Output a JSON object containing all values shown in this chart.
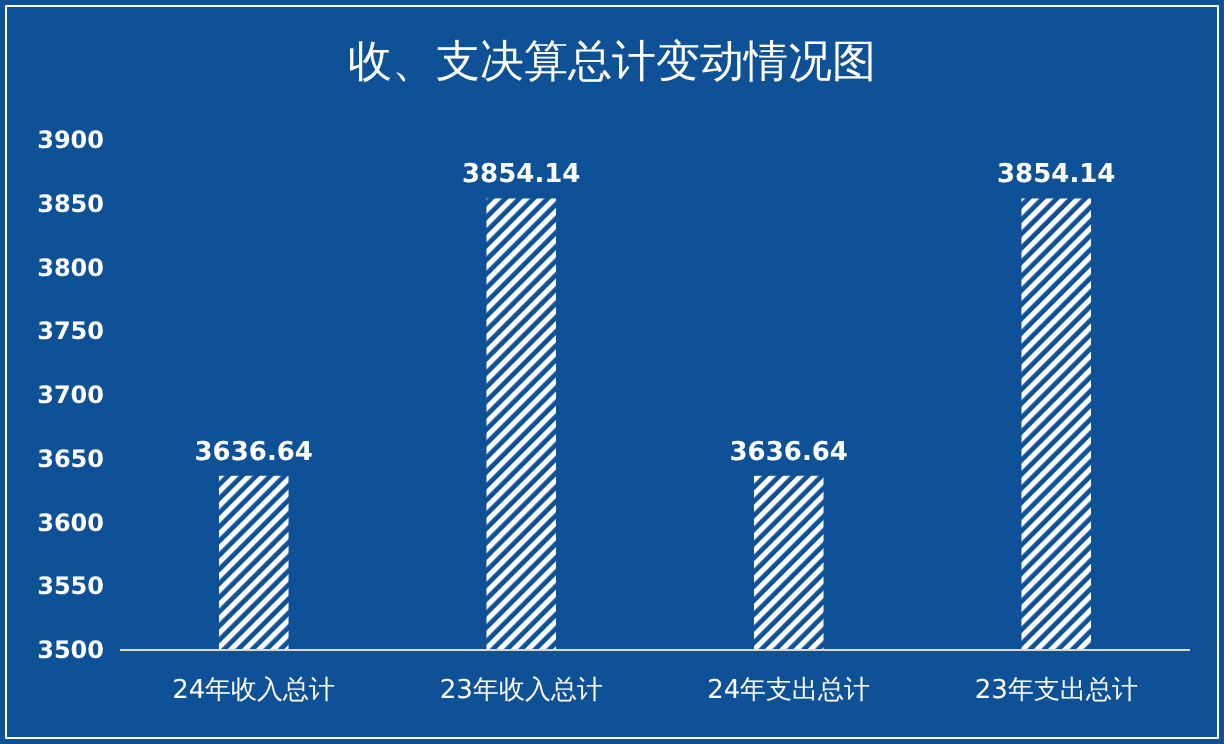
{
  "chart_data": {
    "type": "bar",
    "title": "收、支决算总计变动情况图",
    "categories": [
      "24年收入总计",
      "23年收入总计",
      "24年支出总计",
      "23年支出总计"
    ],
    "values": [
      3636.64,
      3854.14,
      3636.64,
      3854.14
    ],
    "color": "#ffffff",
    "ylim": [
      3500,
      3900
    ],
    "yticks": [
      3500,
      3550,
      3600,
      3650,
      3700,
      3750,
      3800,
      3850,
      3900
    ],
    "grid": false,
    "data_labels": true
  }
}
